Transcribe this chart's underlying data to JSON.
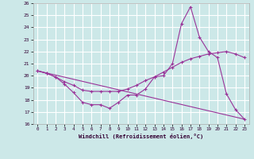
{
  "xlabel": "Windchill (Refroidissement éolien,°C)",
  "ylabel": "",
  "xlim": [
    -0.5,
    23.5
  ],
  "ylim": [
    16,
    26
  ],
  "yticks": [
    16,
    17,
    18,
    19,
    20,
    21,
    22,
    23,
    24,
    25,
    26
  ],
  "xticks": [
    0,
    1,
    2,
    3,
    4,
    5,
    6,
    7,
    8,
    9,
    10,
    11,
    12,
    13,
    14,
    15,
    16,
    17,
    18,
    19,
    20,
    21,
    22,
    23
  ],
  "line_color": "#993399",
  "bg_color": "#cce8e8",
  "grid_color": "#ffffff",
  "line1_x": [
    0,
    1,
    2,
    3,
    4,
    5,
    6,
    7,
    8,
    9,
    10,
    11,
    12,
    13,
    14,
    15,
    16,
    17,
    18,
    19,
    20,
    21,
    22,
    23
  ],
  "line1_y": [
    20.4,
    20.2,
    19.9,
    19.3,
    18.6,
    17.8,
    17.6,
    17.6,
    17.3,
    17.8,
    18.4,
    18.4,
    18.9,
    19.9,
    20.0,
    21.0,
    24.3,
    25.7,
    23.2,
    22.0,
    21.5,
    18.5,
    17.2,
    16.4
  ],
  "line2_x": [
    0,
    1,
    2,
    3,
    4,
    5,
    6,
    7,
    8,
    9,
    10,
    11,
    12,
    13,
    14,
    15,
    16,
    17,
    18,
    19,
    20,
    21,
    22,
    23
  ],
  "line2_y": [
    20.4,
    20.2,
    19.9,
    19.5,
    19.2,
    18.8,
    18.7,
    18.7,
    18.7,
    18.7,
    18.9,
    19.2,
    19.6,
    19.9,
    20.3,
    20.7,
    21.1,
    21.4,
    21.6,
    21.8,
    21.9,
    22.0,
    21.8,
    21.5
  ],
  "line3_x": [
    0,
    23
  ],
  "line3_y": [
    20.4,
    16.4
  ]
}
